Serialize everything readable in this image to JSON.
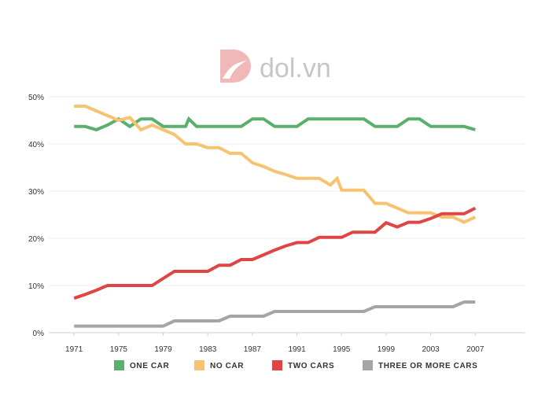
{
  "logo": {
    "text": "dol.vn"
  },
  "chart_data": {
    "type": "line",
    "title": "",
    "xlabel": "",
    "ylabel": "",
    "ylim": [
      0,
      50
    ],
    "y_ticks": [
      "0%",
      "10%",
      "20%",
      "30%",
      "40%",
      "50%"
    ],
    "x_ticks": [
      "1971",
      "1975",
      "1979",
      "1983",
      "1987",
      "1991",
      "1995",
      "1999",
      "2003",
      "2007"
    ],
    "x": [
      1971,
      1972,
      1973,
      1974,
      1975,
      1976,
      1977,
      1978,
      1979,
      1980,
      1981,
      1981.3,
      1982,
      1983,
      1984,
      1985,
      1986,
      1987,
      1988,
      1989,
      1990,
      1991,
      1992,
      1993,
      1994,
      1994.6,
      1995,
      1996,
      1997,
      1998,
      1999,
      2000,
      2001,
      2002,
      2003,
      2004,
      2005,
      2006,
      2007
    ],
    "series": [
      {
        "name": "ONE CAR",
        "color": "#5aaf6e",
        "values": [
          43.7,
          43.7,
          43,
          44,
          45.3,
          43.7,
          45.3,
          45.3,
          43.7,
          43.7,
          43.7,
          45.3,
          43.7,
          43.7,
          43.7,
          43.7,
          43.7,
          45.3,
          45.3,
          43.7,
          43.7,
          43.7,
          45.3,
          45.3,
          45.3,
          45.3,
          45.3,
          45.3,
          45.3,
          43.7,
          43.7,
          43.7,
          45.3,
          45.3,
          43.7,
          43.7,
          43.7,
          43.7,
          43
        ]
      },
      {
        "name": "NO CAR",
        "color": "#f7c370",
        "values": [
          48,
          48,
          47,
          46,
          45,
          45.6,
          43,
          44,
          43,
          42,
          40,
          40,
          40,
          39.2,
          39.2,
          38,
          38,
          36,
          35.2,
          34.2,
          33.5,
          32.7,
          32.7,
          32.7,
          31.3,
          32.7,
          30.2,
          30.2,
          30.2,
          27.4,
          27.4,
          26.4,
          25.4,
          25.4,
          25.4,
          24.5,
          24.5,
          23.4,
          24.5
        ]
      },
      {
        "name": "TWO CARS",
        "color": "#e04545",
        "values": [
          7.3,
          8.1,
          9,
          10,
          10,
          10,
          10,
          10,
          11.5,
          13,
          13,
          13,
          13,
          13,
          14.3,
          14.3,
          15.5,
          15.5,
          16.5,
          17.5,
          18.4,
          19.1,
          19.1,
          20.2,
          20.2,
          20.2,
          20.2,
          21.3,
          21.3,
          21.3,
          23.3,
          22.4,
          23.4,
          23.4,
          24.2,
          25.2,
          25.2,
          25.2,
          26.4
        ]
      },
      {
        "name": "THREE OR MORE CARS",
        "color": "#a5a5a9",
        "values": [
          1.4,
          1.4,
          1.4,
          1.4,
          1.4,
          1.4,
          1.4,
          1.4,
          1.4,
          2.5,
          2.5,
          2.5,
          2.5,
          2.5,
          2.5,
          3.5,
          3.5,
          3.5,
          3.5,
          4.5,
          4.5,
          4.5,
          4.5,
          4.5,
          4.5,
          4.5,
          4.5,
          4.5,
          4.5,
          5.5,
          5.5,
          5.5,
          5.5,
          5.5,
          5.5,
          5.5,
          5.5,
          6.5,
          6.5
        ]
      }
    ],
    "legend_position": "bottom",
    "grid": true
  }
}
